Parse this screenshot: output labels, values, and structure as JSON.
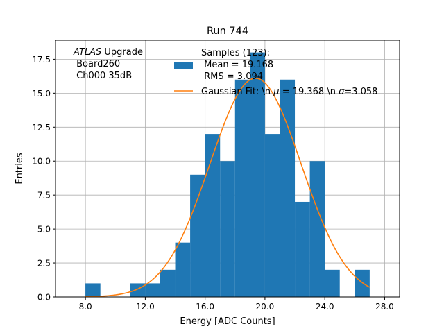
{
  "chart_data": {
    "type": "bar",
    "title": "Run 744",
    "xlabel": "Energy [ADC Counts]",
    "ylabel": "Entries",
    "xlim": [
      6.0,
      29.0
    ],
    "ylim": [
      0,
      18.9
    ],
    "grid": true,
    "xticks": [
      8.0,
      12.0,
      16.0,
      20.0,
      24.0,
      28.0
    ],
    "xtick_labels": [
      "8.0",
      "12.0",
      "16.0",
      "20.0",
      "24.0",
      "28.0"
    ],
    "yticks": [
      0.0,
      2.5,
      5.0,
      7.5,
      10.0,
      12.5,
      15.0,
      17.5
    ],
    "ytick_labels": [
      "0.0",
      "2.5",
      "5.0",
      "7.5",
      "10.0",
      "12.5",
      "15.0",
      "17.5"
    ],
    "bin_width": 1,
    "bin_edges_start": [
      8,
      9,
      10,
      11,
      12,
      13,
      14,
      15,
      16,
      17,
      18,
      19,
      20,
      21,
      22,
      23,
      24,
      25,
      26
    ],
    "counts": [
      1,
      0,
      0,
      1,
      1,
      2,
      4,
      9,
      12,
      10,
      16,
      18,
      12,
      16,
      7,
      10,
      2,
      0,
      2
    ],
    "hist_color": "#1f77b4",
    "fit": {
      "type": "gaussian",
      "amplitude": 16.1,
      "mu": 19.368,
      "sigma": 3.058,
      "x_range": [
        8.0,
        27.0
      ],
      "color": "#ff7f0e"
    },
    "legend": {
      "placement": "top-right",
      "hist_entry": [
        "Samples (123):",
        " Mean = 19.168",
        " RMS = 3.094"
      ],
      "fit_entry_prefix": "Gaussian Fit: \\n ",
      "fit_entry_mu_symbol": "μ",
      "fit_entry_mid": " = 19.368 \\n ",
      "fit_entry_sigma_symbol": "σ",
      "fit_entry_suffix": "=3.058"
    },
    "annotation": {
      "placement": "top-left",
      "italic_word": "ATLAS",
      "word": " Upgrade",
      "lines": [
        " Board260",
        " Ch000 35dB"
      ]
    }
  }
}
